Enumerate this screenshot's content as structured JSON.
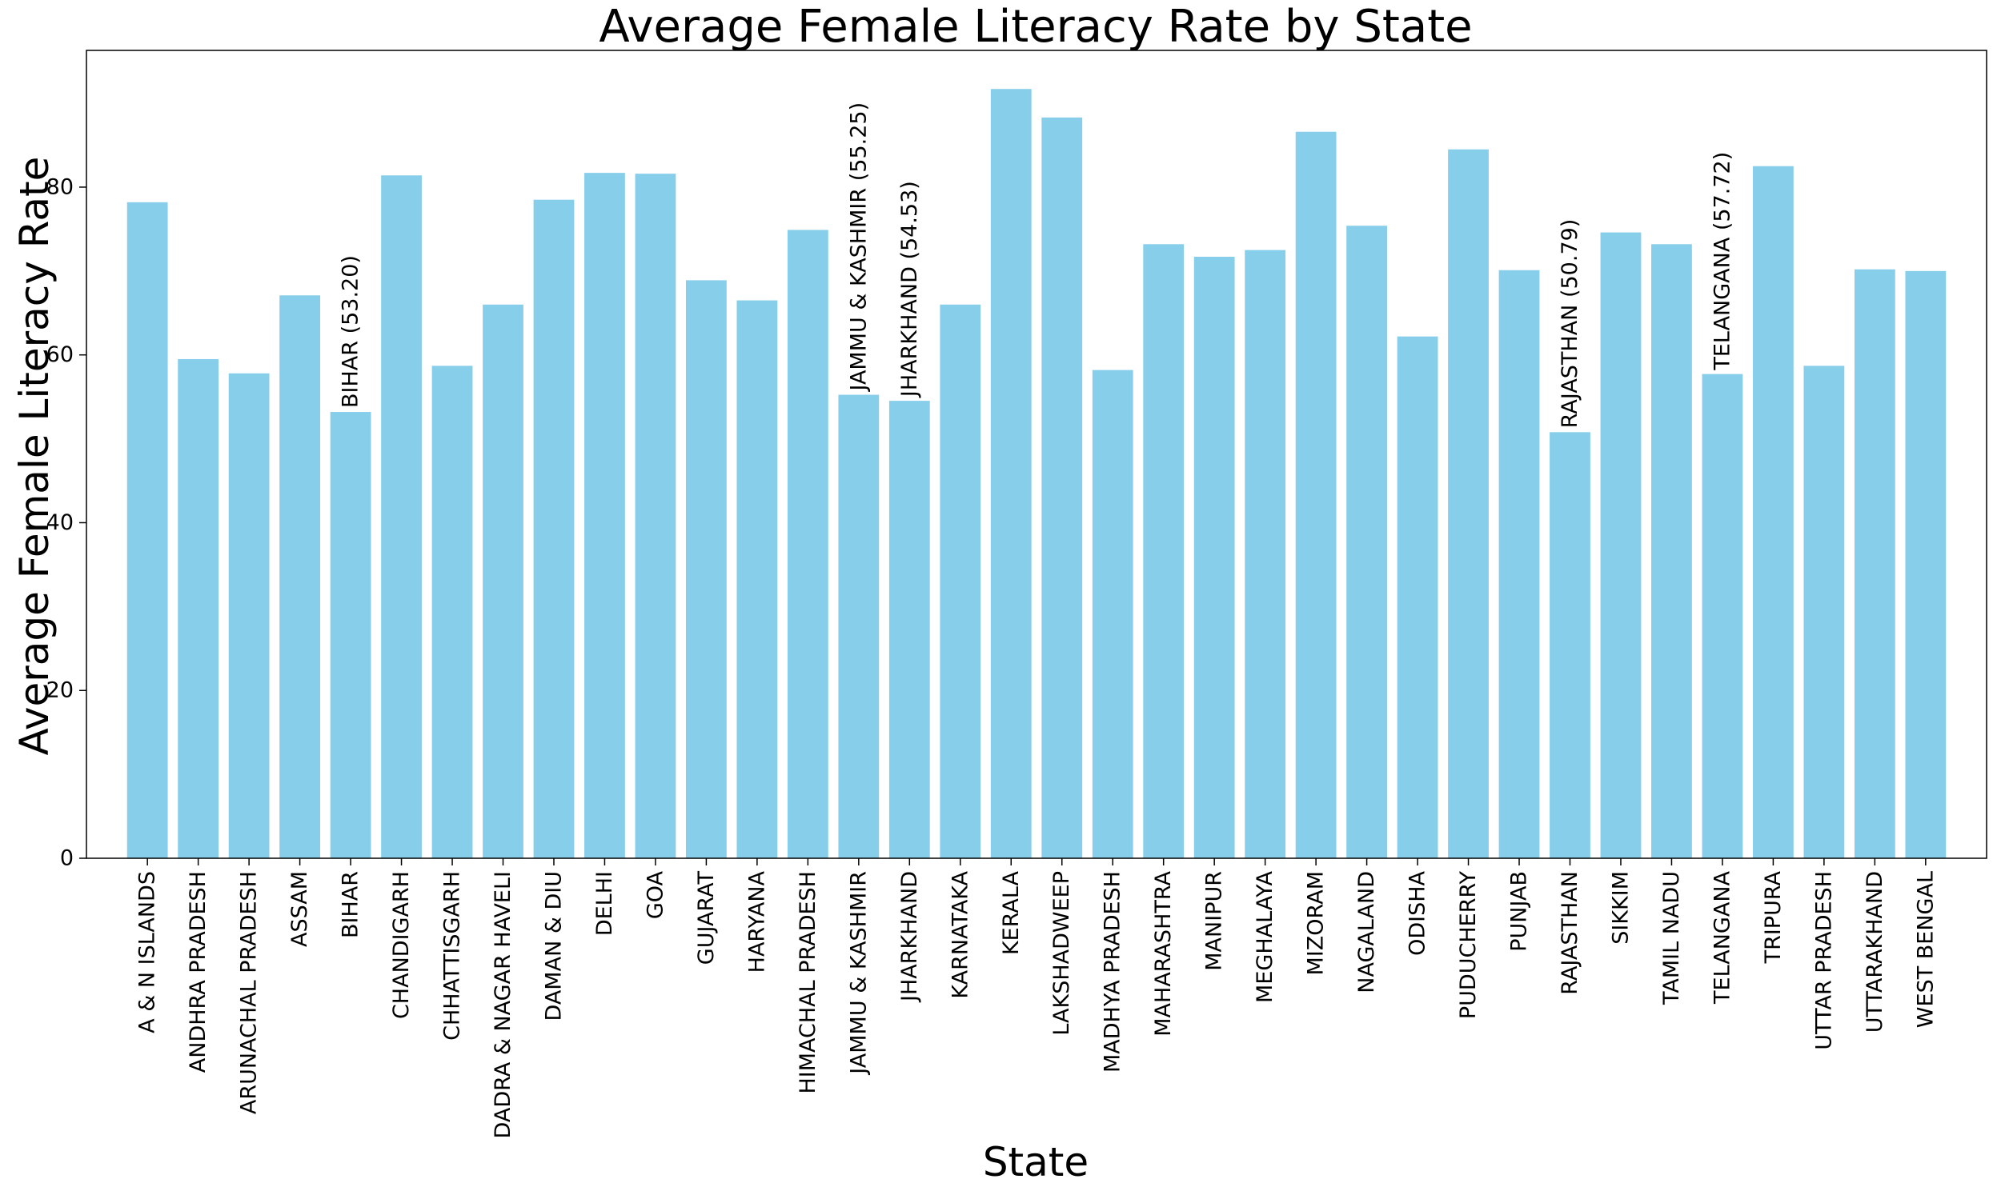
{
  "chart_data": {
    "type": "bar",
    "title": "Average Female Literacy Rate by State",
    "xlabel": "State",
    "ylabel": "Average Female Literacy Rate",
    "ylim": [
      0,
      96.3
    ],
    "yticks": [
      0,
      20,
      40,
      60,
      80
    ],
    "bar_color": "#87CEEB",
    "categories": [
      "A & N ISLANDS",
      "ANDHRA PRADESH",
      "ARUNACHAL PRADESH",
      "ASSAM",
      "BIHAR",
      "CHANDIGARH",
      "CHHATTISGARH",
      "DADRA & NAGAR HAVELI",
      "DAMAN & DIU",
      "DELHI",
      "GOA",
      "GUJARAT",
      "HARYANA",
      "HIMACHAL PRADESH",
      "JAMMU & KASHMIR",
      "JHARKHAND",
      "KARNATAKA",
      "KERALA",
      "LAKSHADWEEP",
      "MADHYA PRADESH",
      "MAHARASHTRA",
      "MANIPUR",
      "MEGHALAYA",
      "MIZORAM",
      "NAGALAND",
      "ODISHA",
      "PUDUCHERRY",
      "PUNJAB",
      "RAJASTHAN",
      "SIKKIM",
      "TAMIL NADU",
      "TELANGANA",
      "TRIPURA",
      "UTTAR PRADESH",
      "UTTARAKHAND",
      "WEST BENGAL"
    ],
    "values": [
      78.2,
      59.5,
      57.8,
      67.1,
      53.2,
      81.4,
      58.7,
      66.0,
      78.5,
      81.7,
      81.6,
      68.9,
      66.5,
      74.9,
      55.25,
      54.53,
      66.0,
      91.7,
      88.3,
      58.2,
      73.2,
      71.7,
      72.5,
      86.6,
      75.4,
      62.2,
      84.5,
      70.1,
      50.79,
      74.6,
      73.2,
      57.72,
      82.5,
      58.7,
      70.2,
      70.0
    ],
    "annotations": [
      {
        "index": 4,
        "text": "BIHAR (53.20)"
      },
      {
        "index": 14,
        "text": "JAMMU & KASHMIR (55.25)"
      },
      {
        "index": 15,
        "text": "JHARKHAND (54.53)"
      },
      {
        "index": 28,
        "text": "RAJASTHAN (50.79)"
      },
      {
        "index": 31,
        "text": "TELANGANA (57.72)"
      }
    ]
  }
}
